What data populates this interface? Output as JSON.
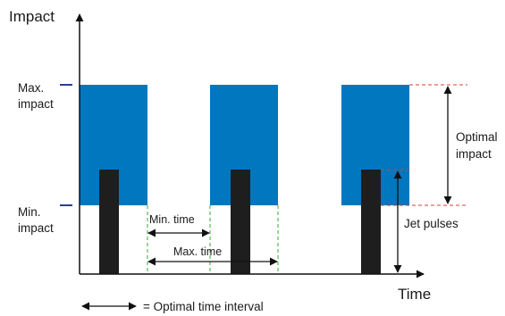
{
  "labels": {
    "y_axis": "Impact",
    "x_axis": "Time",
    "max_impact_1": "Max.",
    "max_impact_2": "impact",
    "min_impact_1": "Min.",
    "min_impact_2": "impact",
    "optimal_impact_1": "Optimal",
    "optimal_impact_2": "impact",
    "jet_pulses": "Jet pulses",
    "min_time": "Min. time",
    "max_time": "Max. time",
    "legend": "= Optimal time interval"
  },
  "colors": {
    "impact_block": "#0077be",
    "jet_pulse": "#1e1e1e",
    "axis": "#111111",
    "tick": "#2c3e8f",
    "green_guide": "#3aa83a",
    "red_guide": "#e03a3a"
  }
}
